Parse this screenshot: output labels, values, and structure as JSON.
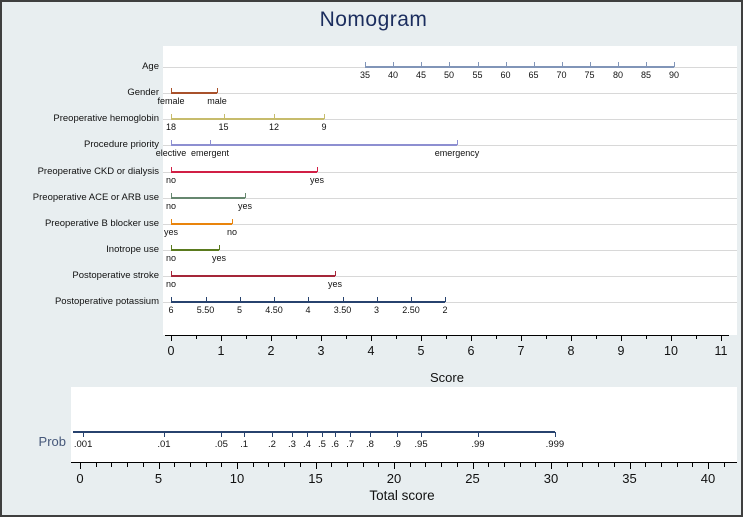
{
  "title": "Nomogram",
  "colors": {
    "background": "#e8eef0",
    "panel": "#ffffff",
    "title_text": "#1b2d5e",
    "axis_line": "#000000",
    "row_gridline": "#d8d8d8",
    "prob_label_text": "#46587a",
    "frame_border": "#3f3f3f"
  },
  "chart_data": {
    "type": "nomogram",
    "title": "Nomogram",
    "score_axis": {
      "label": "Score",
      "min": 0,
      "max": 11,
      "major_tick_step": 1,
      "minor_tick_step": 0.5,
      "tick_labels": [
        "0",
        "1",
        "2",
        "3",
        "4",
        "5",
        "6",
        "7",
        "8",
        "9",
        "10",
        "11"
      ]
    },
    "variables": [
      {
        "name": "Age",
        "color": "#8195b8",
        "ticks": [
          {
            "label": "35",
            "score": 3.88
          },
          {
            "label": "40",
            "score": 4.44
          },
          {
            "label": "45",
            "score": 5.0
          },
          {
            "label": "50",
            "score": 5.56
          },
          {
            "label": "55",
            "score": 6.13
          },
          {
            "label": "60",
            "score": 6.69
          },
          {
            "label": "65",
            "score": 7.25
          },
          {
            "label": "70",
            "score": 7.81
          },
          {
            "label": "75",
            "score": 8.37
          },
          {
            "label": "80",
            "score": 8.94
          },
          {
            "label": "85",
            "score": 9.5
          },
          {
            "label": "90",
            "score": 10.06
          }
        ]
      },
      {
        "name": "Gender",
        "color": "#a8512b",
        "ticks": [
          {
            "label": "female",
            "score": 0
          },
          {
            "label": "male",
            "score": 0.92
          }
        ]
      },
      {
        "name": "Preoperative hemoglobin",
        "color": "#c7bc6c",
        "ticks": [
          {
            "label": "18",
            "score": 0
          },
          {
            "label": "15",
            "score": 1.05
          },
          {
            "label": "12",
            "score": 2.06
          },
          {
            "label": "9",
            "score": 3.06
          }
        ]
      },
      {
        "name": "Procedure priority",
        "color": "#8d8fd1",
        "ticks": [
          {
            "label": "elective",
            "score": 0
          },
          {
            "label": "emergent",
            "score": 0.78
          },
          {
            "label": "emergency",
            "score": 5.72
          }
        ]
      },
      {
        "name": "Preoperative CKD or dialysis",
        "color": "#d11f45",
        "ticks": [
          {
            "label": "no",
            "score": 0
          },
          {
            "label": "yes",
            "score": 2.92
          }
        ]
      },
      {
        "name": "Preoperative ACE or ARB use",
        "color": "#66876f",
        "ticks": [
          {
            "label": "no",
            "score": 0
          },
          {
            "label": "yes",
            "score": 1.48
          }
        ]
      },
      {
        "name": "Preoperative B blocker use",
        "color": "#e9840c",
        "ticks": [
          {
            "label": "yes",
            "score": 0
          },
          {
            "label": "no",
            "score": 1.22
          }
        ]
      },
      {
        "name": "Inotrope use",
        "color": "#5a7a1e",
        "ticks": [
          {
            "label": "no",
            "score": 0
          },
          {
            "label": "yes",
            "score": 0.96
          }
        ]
      },
      {
        "name": "Postoperative stroke",
        "color": "#a52639",
        "ticks": [
          {
            "label": "no",
            "score": 0
          },
          {
            "label": "yes",
            "score": 3.28
          }
        ]
      },
      {
        "name": "Postoperative potassium",
        "color": "#27426e",
        "ticks": [
          {
            "label": "6",
            "score": 0
          },
          {
            "label": "5.50",
            "score": 0.69
          },
          {
            "label": "5",
            "score": 1.37
          },
          {
            "label": "4.50",
            "score": 2.06
          },
          {
            "label": "4",
            "score": 2.74
          },
          {
            "label": "3.50",
            "score": 3.43
          },
          {
            "label": "3",
            "score": 4.11
          },
          {
            "label": "2.50",
            "score": 4.8
          },
          {
            "label": "2",
            "score": 5.48
          }
        ]
      }
    ],
    "probability_scale": {
      "label": "Prob",
      "color": "#27426e",
      "line_range_total_score": [
        -0.45,
        30.25
      ],
      "ticks": [
        {
          "label": ".001",
          "total_score": 0.2
        },
        {
          "label": ".01",
          "total_score": 5.35
        },
        {
          "label": ".05",
          "total_score": 9.0
        },
        {
          "label": ".1",
          "total_score": 10.45
        },
        {
          "label": ".2",
          "total_score": 12.23
        },
        {
          "label": ".3",
          "total_score": 13.5
        },
        {
          "label": ".4",
          "total_score": 14.46
        },
        {
          "label": ".5",
          "total_score": 15.41
        },
        {
          "label": ".6",
          "total_score": 16.24
        },
        {
          "label": ".7",
          "total_score": 17.2
        },
        {
          "label": ".8",
          "total_score": 18.47
        },
        {
          "label": ".9",
          "total_score": 20.19
        },
        {
          "label": ".95",
          "total_score": 21.72
        },
        {
          "label": ".99",
          "total_score": 25.35
        },
        {
          "label": ".999",
          "total_score": 30.25
        }
      ]
    },
    "total_score_axis": {
      "label": "Total score",
      "min": 0,
      "max": 41,
      "major_tick_step": 5,
      "minor_tick_step": 1,
      "tick_labels": [
        "0",
        "5",
        "10",
        "15",
        "20",
        "25",
        "30",
        "35",
        "40"
      ]
    }
  }
}
